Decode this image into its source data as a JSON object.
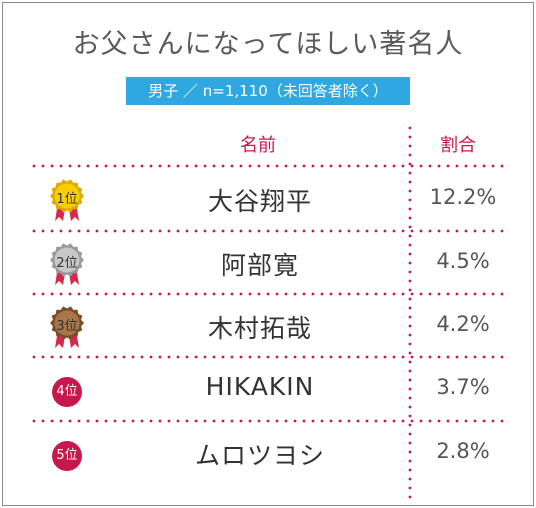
{
  "title": "お父さんになってほしい著名人",
  "subtitle": "男子 ／ n=1,110（未回答者除く）",
  "colors": {
    "accent": "#c8174b",
    "subtitle_bg": "#2fa7e0",
    "gold": "#f2c200",
    "silver": "#a9a9a9",
    "bronze": "#9a6a3a"
  },
  "chart_data": {
    "type": "table",
    "columns": [
      "名前",
      "割合"
    ],
    "rows": [
      {
        "rank": "1",
        "rank_suffix": "位",
        "name": "大谷翔平",
        "percent": 12.2,
        "label": "12.2%",
        "badge": "gold-medal"
      },
      {
        "rank": "2",
        "rank_suffix": "位",
        "name": "阿部寛",
        "percent": 4.5,
        "label": "4.5%",
        "badge": "silver-medal"
      },
      {
        "rank": "3",
        "rank_suffix": "位",
        "name": "木村拓哉",
        "percent": 4.2,
        "label": "4.2%",
        "badge": "bronze-medal"
      },
      {
        "rank": "4",
        "rank_suffix": "位",
        "name": "HIKAKIN",
        "percent": 3.7,
        "label": "3.7%",
        "badge": "red-circle"
      },
      {
        "rank": "5",
        "rank_suffix": "位",
        "name": "ムロツヨシ",
        "percent": 2.8,
        "label": "2.8%",
        "badge": "red-circle"
      }
    ]
  }
}
